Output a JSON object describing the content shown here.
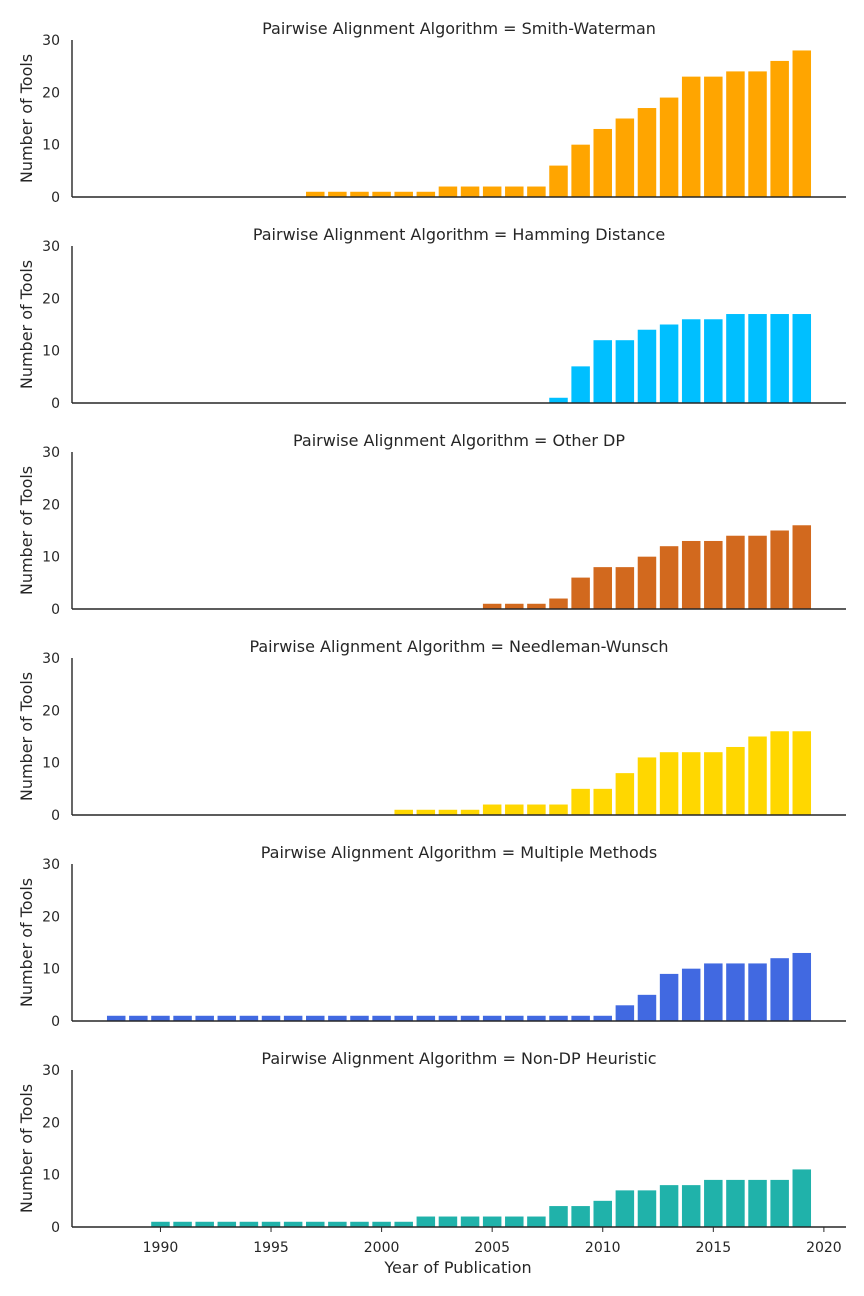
{
  "chart_data": {
    "type": "bar",
    "facet_variable": "Pairwise Alignment Algorithm",
    "xlabel": "Year of Publication",
    "ylabel": "Number of Tools",
    "xlim": [
      1986,
      2021
    ],
    "ylim": [
      0,
      30
    ],
    "x_ticks": [
      1990,
      1995,
      2000,
      2005,
      2010,
      2015,
      2020
    ],
    "y_ticks": [
      0,
      10,
      20,
      30
    ],
    "grid": false,
    "legend": "none",
    "panels": [
      {
        "title": "Pairwise Alignment Algorithm = Smith-Waterman",
        "color": "#FFA500",
        "x": [
          1997,
          1998,
          1999,
          2000,
          2001,
          2002,
          2003,
          2004,
          2005,
          2006,
          2007,
          2008,
          2009,
          2010,
          2011,
          2012,
          2013,
          2014,
          2015,
          2016,
          2017,
          2018,
          2019
        ],
        "values": [
          1,
          1,
          1,
          1,
          1,
          1,
          2,
          2,
          2,
          2,
          2,
          6,
          10,
          13,
          15,
          17,
          19,
          23,
          23,
          24,
          24,
          26,
          28
        ]
      },
      {
        "title": "Pairwise Alignment Algorithm = Hamming Distance",
        "color": "#00BFFF",
        "x": [
          2008,
          2009,
          2010,
          2011,
          2012,
          2013,
          2014,
          2015,
          2016,
          2017,
          2018,
          2019
        ],
        "values": [
          1,
          7,
          12,
          12,
          14,
          15,
          16,
          16,
          17,
          17,
          17,
          17
        ]
      },
      {
        "title": "Pairwise Alignment Algorithm = Other DP",
        "color": "#D2691E",
        "x": [
          2005,
          2006,
          2007,
          2008,
          2009,
          2010,
          2011,
          2012,
          2013,
          2014,
          2015,
          2016,
          2017,
          2018,
          2019
        ],
        "values": [
          1,
          1,
          1,
          2,
          6,
          8,
          8,
          10,
          12,
          13,
          13,
          14,
          14,
          15,
          16
        ]
      },
      {
        "title": "Pairwise Alignment Algorithm = Needleman-Wunsch",
        "color": "#FFD700",
        "x": [
          2001,
          2002,
          2003,
          2004,
          2005,
          2006,
          2007,
          2008,
          2009,
          2010,
          2011,
          2012,
          2013,
          2014,
          2015,
          2016,
          2017,
          2018,
          2019
        ],
        "values": [
          1,
          1,
          1,
          1,
          2,
          2,
          2,
          2,
          5,
          5,
          8,
          11,
          12,
          12,
          12,
          13,
          15,
          16,
          16
        ]
      },
      {
        "title": "Pairwise Alignment Algorithm = Multiple Methods",
        "color": "#4169E1",
        "x": [
          1988,
          1989,
          1990,
          1991,
          1992,
          1993,
          1994,
          1995,
          1996,
          1997,
          1998,
          1999,
          2000,
          2001,
          2002,
          2003,
          2004,
          2005,
          2006,
          2007,
          2008,
          2009,
          2010,
          2011,
          2012,
          2013,
          2014,
          2015,
          2016,
          2017,
          2018,
          2019
        ],
        "values": [
          1,
          1,
          1,
          1,
          1,
          1,
          1,
          1,
          1,
          1,
          1,
          1,
          1,
          1,
          1,
          1,
          1,
          1,
          1,
          1,
          1,
          1,
          1,
          3,
          5,
          9,
          10,
          11,
          11,
          11,
          12,
          13
        ]
      },
      {
        "title": "Pairwise Alignment Algorithm = Non-DP Heuristic",
        "color": "#20B2AA",
        "x": [
          1990,
          1991,
          1992,
          1993,
          1994,
          1995,
          1996,
          1997,
          1998,
          1999,
          2000,
          2001,
          2002,
          2003,
          2004,
          2005,
          2006,
          2007,
          2008,
          2009,
          2010,
          2011,
          2012,
          2013,
          2014,
          2015,
          2016,
          2017,
          2018,
          2019
        ],
        "values": [
          1,
          1,
          1,
          1,
          1,
          1,
          1,
          1,
          1,
          1,
          1,
          1,
          2,
          2,
          2,
          2,
          2,
          2,
          4,
          4,
          5,
          7,
          7,
          8,
          8,
          9,
          9,
          9,
          9,
          11
        ]
      }
    ]
  }
}
